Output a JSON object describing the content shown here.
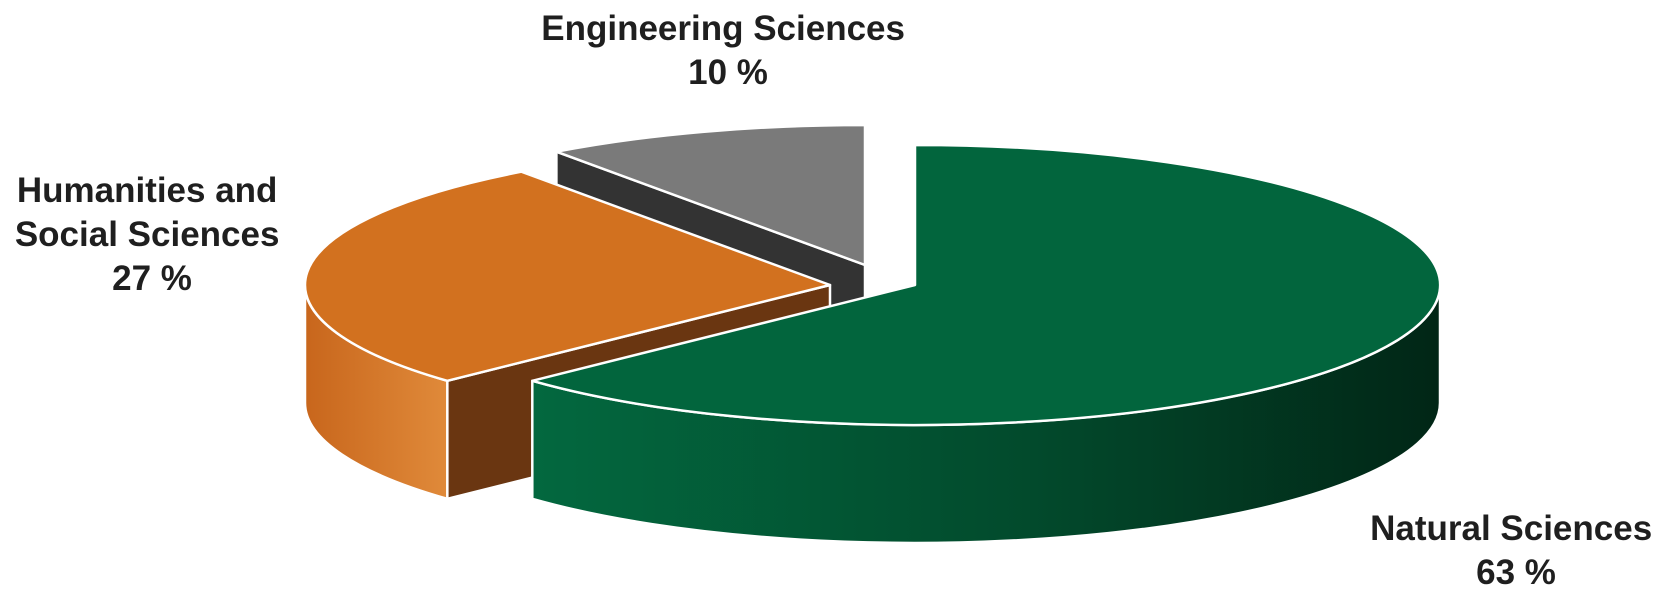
{
  "chart_data": {
    "type": "pie",
    "title": "",
    "slices": [
      {
        "label_lines": [
          "Natural Sciences"
        ],
        "value_text": "63 %",
        "value": 63,
        "color": "#02653d",
        "dark_color": "#012a18"
      },
      {
        "label_lines": [
          "Humanities and",
          "Social Sciences"
        ],
        "value_text": "27 %",
        "value": 27,
        "color": "#d2711f",
        "dark_color": "#6a3611"
      },
      {
        "label_lines": [
          "Engineering Sciences"
        ],
        "value_text": "10 %",
        "value": 10,
        "color": "#7a7a7a",
        "dark_color": "#333333"
      }
    ]
  }
}
